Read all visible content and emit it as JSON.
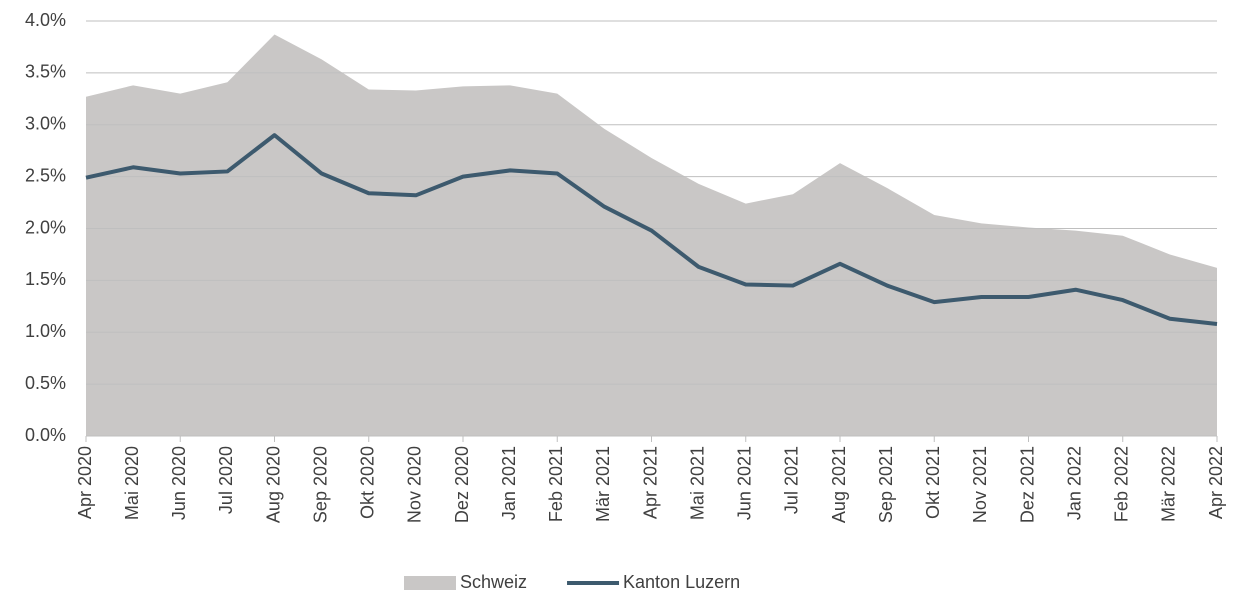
{
  "chart_data": {
    "type": "combo",
    "categories": [
      "Apr 2020",
      "Mai 2020",
      "Jun 2020",
      "Jul 2020",
      "Aug 2020",
      "Sep 2020",
      "Okt 2020",
      "Nov 2020",
      "Dez 2020",
      "Jan 2021",
      "Feb 2021",
      "Mär 2021",
      "Apr 2021",
      "Mai 2021",
      "Jun 2021",
      "Jul 2021",
      "Aug 2021",
      "Sep 2021",
      "Okt 2021",
      "Nov 2021",
      "Dez 2021",
      "Jan 2022",
      "Feb 2022",
      "Mär 2022",
      "Apr 2022"
    ],
    "series": [
      {
        "name": "Schweiz",
        "type": "area",
        "color": "#c9c7c6",
        "values": [
          3.27,
          3.38,
          3.3,
          3.41,
          3.87,
          3.63,
          3.34,
          3.33,
          3.37,
          3.38,
          3.3,
          2.96,
          2.68,
          2.43,
          2.24,
          2.33,
          2.63,
          2.39,
          2.13,
          2.05,
          2.01,
          1.98,
          1.93,
          1.75,
          1.62
        ]
      },
      {
        "name": "Kanton Luzern",
        "type": "line",
        "color": "#3d5a6e",
        "values": [
          2.49,
          2.59,
          2.53,
          2.55,
          2.9,
          2.53,
          2.34,
          2.32,
          2.5,
          2.56,
          2.53,
          2.21,
          1.98,
          1.63,
          1.46,
          1.45,
          1.66,
          1.45,
          1.29,
          1.34,
          1.34,
          1.41,
          1.31,
          1.13,
          1.08
        ]
      }
    ],
    "ylim": [
      0,
      4
    ],
    "yticks": [
      {
        "value": 0,
        "label": "0.0%"
      },
      {
        "value": 0.5,
        "label": "0.5%"
      },
      {
        "value": 1,
        "label": "1.0%"
      },
      {
        "value": 1.5,
        "label": "1.5%"
      },
      {
        "value": 2,
        "label": "2.0%"
      },
      {
        "value": 2.5,
        "label": "2.5%"
      },
      {
        "value": 3,
        "label": "3.0%"
      },
      {
        "value": 3.5,
        "label": "3.5%"
      },
      {
        "value": 4,
        "label": "4.0%"
      }
    ],
    "grid": true,
    "legend": "bottom"
  }
}
